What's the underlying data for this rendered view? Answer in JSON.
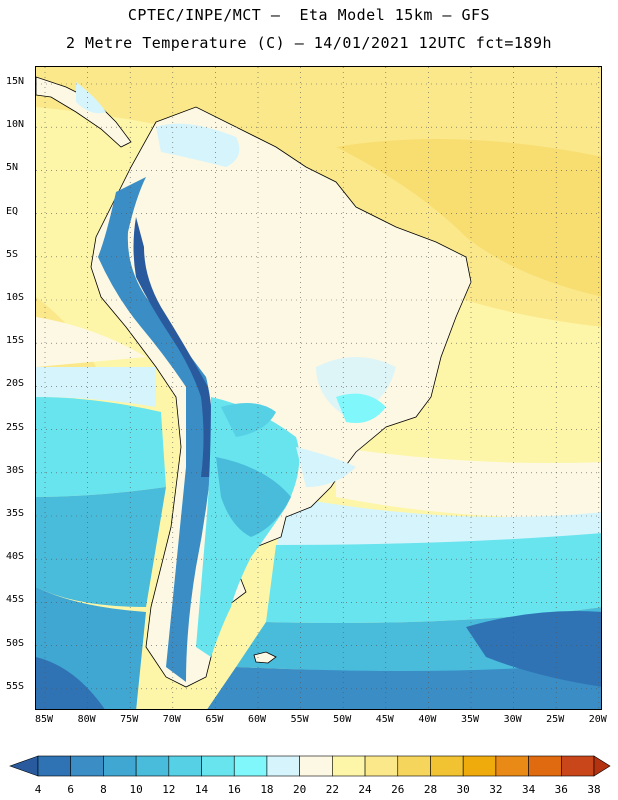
{
  "header": {
    "line1": "CPTEC/INPE/MCT –  Eta Model 15km – GFS",
    "line2": "2 Metre Temperature (C) – 14/01/2021 12UTC fct=189h"
  },
  "axes": {
    "lat_labels": [
      "15N",
      "10N",
      "5N",
      "EQ",
      "5S",
      "10S",
      "15S",
      "20S",
      "25S",
      "30S",
      "35S",
      "40S",
      "45S",
      "50S",
      "55S"
    ],
    "lon_labels": [
      "85W",
      "80W",
      "75W",
      "70W",
      "65W",
      "60W",
      "55W",
      "50W",
      "45W",
      "40W",
      "35W",
      "30W",
      "25W",
      "20W"
    ]
  },
  "colorbar": {
    "labels": [
      "4",
      "6",
      "8",
      "10",
      "12",
      "14",
      "16",
      "18",
      "20",
      "22",
      "24",
      "26",
      "28",
      "30",
      "32",
      "34",
      "36",
      "38"
    ],
    "colors": [
      "#2a5a9e",
      "#2f73b5",
      "#3a8dc5",
      "#3fa7d2",
      "#49bcdc",
      "#56d0e5",
      "#68e4ee",
      "#7ff7fb",
      "#d6f4fb",
      "#fdf8e4",
      "#fdf6a8",
      "#fbe88a",
      "#f6d55c",
      "#f1c232",
      "#efaa0c",
      "#e98a17",
      "#e06a10",
      "#c9461a",
      "#b33210"
    ]
  },
  "map": {
    "ocean_colors": {
      "warm_north": "#fbe88a",
      "hot_core": "#f6d55c",
      "subtropical": "#fdf6a8",
      "mild": "#fdf8e4",
      "cool": "#d6f4fb",
      "cold": "#68e4ee",
      "colder": "#49bcdc",
      "coldest": "#3a8dc5",
      "deep": "#2f73b5"
    },
    "land_colors": {
      "interior": "#fdf8e4",
      "andes_high": "#2a5a9e",
      "andes_mid": "#3a8dc5",
      "patagonia": "#68e4ee",
      "south": "#49bcdc"
    }
  }
}
